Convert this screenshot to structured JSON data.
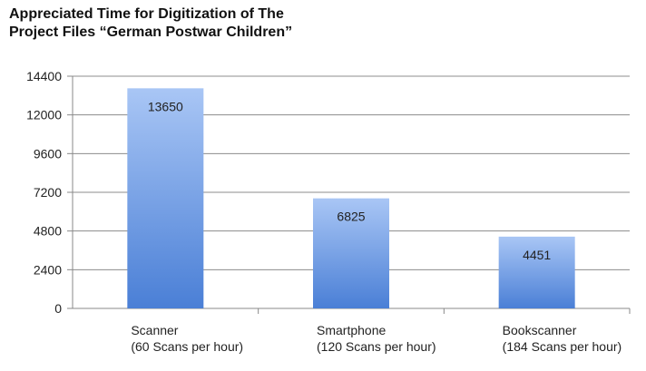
{
  "chart_data": {
    "type": "bar",
    "title": [
      "Appreciated Time for Digitization of The",
      "Project Files “German Postwar Children”"
    ],
    "categories": [
      [
        "Scanner",
        "(60 Scans per hour)"
      ],
      [
        "Smartphone",
        "(120 Scans per hour)"
      ],
      [
        "Bookscanner",
        "(184 Scans per hour)"
      ]
    ],
    "values": [
      13650,
      6825,
      4451
    ],
    "data_labels": [
      "13650",
      "6825",
      "4451"
    ],
    "yticks": [
      0,
      2400,
      4800,
      7200,
      9600,
      12000,
      14400
    ],
    "ylim": [
      0,
      14400
    ],
    "grid": true,
    "bar_color_top": "#a9c6f5",
    "bar_color_bottom": "#4a7fd6"
  }
}
